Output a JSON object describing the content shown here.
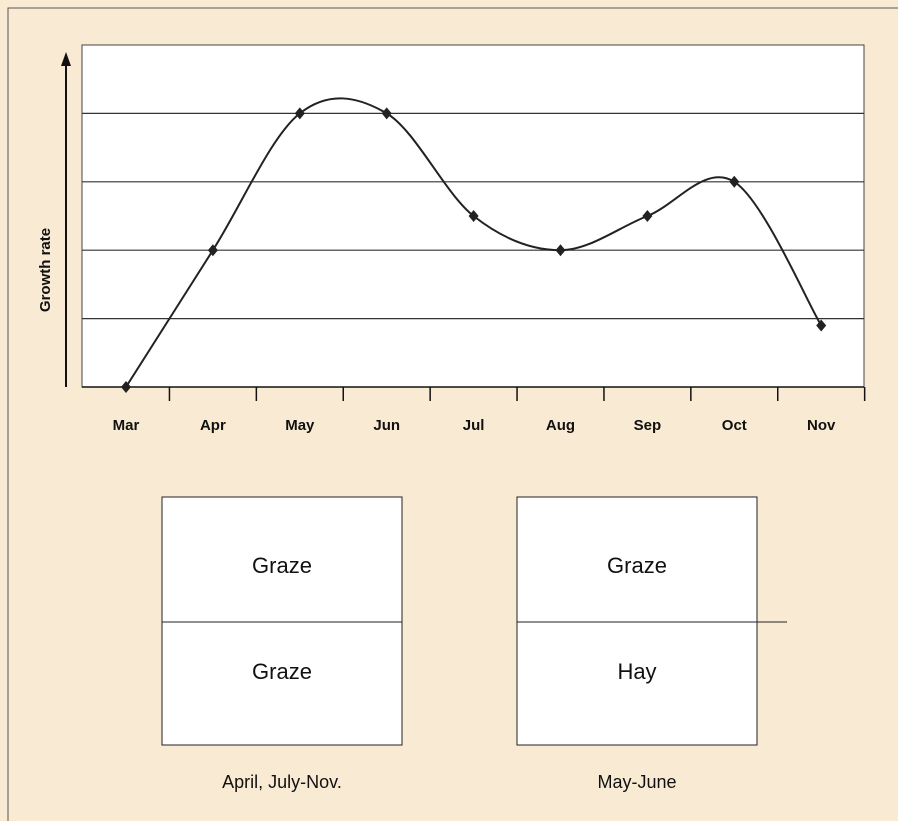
{
  "chart_data": {
    "type": "line",
    "y_label": "Growth rate",
    "categories": [
      "Mar",
      "Apr",
      "May",
      "Jun",
      "Jul",
      "Aug",
      "Sep",
      "Oct",
      "Nov"
    ],
    "values": [
      0,
      2,
      4,
      4,
      2.5,
      2,
      2.5,
      3,
      0.9
    ],
    "color": "#222222",
    "ylim": [
      0,
      5
    ],
    "yticks": [
      1,
      2,
      3,
      4
    ],
    "grid": true
  },
  "panels": [
    {
      "top": "Graze",
      "bottom": "Graze",
      "caption": "April, July-Nov."
    },
    {
      "top": "Graze",
      "bottom": "Hay",
      "caption": "May-June"
    }
  ]
}
